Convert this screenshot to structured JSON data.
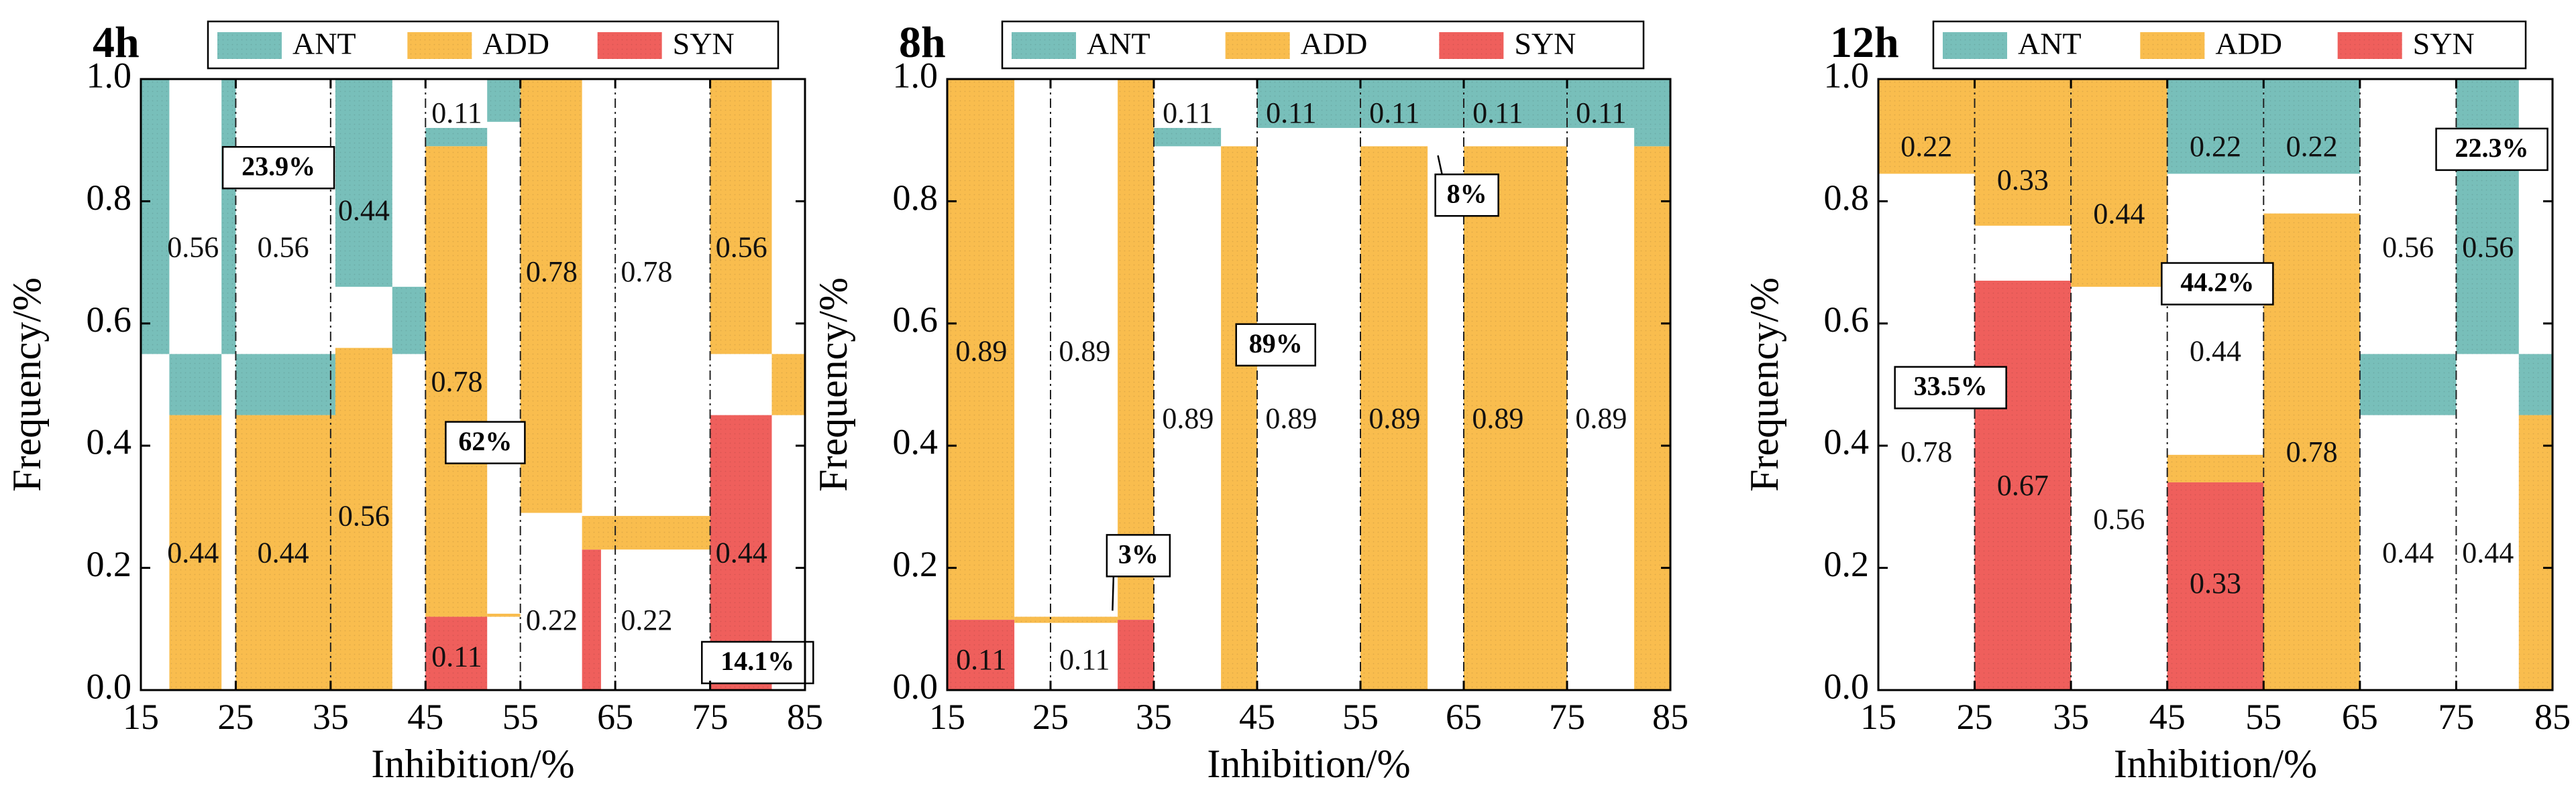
{
  "colors": {
    "ANT": "#78bfba",
    "ADD": "#f9bd4e",
    "SYN": "#ef5f5c"
  },
  "chart_data": [
    {
      "type": "bar",
      "variant": "variable-width stacked bars (mosaic)",
      "title": "4h",
      "xlabel": "Inhibition/%",
      "ylabel": "Frequency/%",
      "xlim": [
        15,
        85
      ],
      "ylim": [
        0,
        1.0
      ],
      "xticks": [
        "15",
        "25",
        "35",
        "45",
        "55",
        "65",
        "75",
        "85"
      ],
      "yticks": [
        "0.0",
        "0.2",
        "0.4",
        "0.6",
        "0.8",
        "1.0"
      ],
      "legend": [
        "ANT",
        "ADD",
        "SYN"
      ],
      "cells": [
        {
          "x0": 15,
          "x1": 18,
          "y0": 0.55,
          "y1": 1.0,
          "cat": "ANT"
        },
        {
          "x0": 18,
          "x1": 23.5,
          "y0": 0.45,
          "y1": 0.55,
          "cat": "ANT"
        },
        {
          "x0": 18,
          "x1": 23.5,
          "y0": 0.0,
          "y1": 0.45,
          "cat": "ADD"
        },
        {
          "x0": 23.5,
          "x1": 25,
          "y0": 0.55,
          "y1": 1.0,
          "cat": "ANT"
        },
        {
          "x0": 25,
          "x1": 35.5,
          "y0": 0.45,
          "y1": 0.55,
          "cat": "ANT"
        },
        {
          "x0": 25,
          "x1": 35.5,
          "y0": 0.0,
          "y1": 0.45,
          "cat": "ADD"
        },
        {
          "x0": 35.5,
          "x1": 41.5,
          "y0": 0.66,
          "y1": 1.0,
          "cat": "ANT"
        },
        {
          "x0": 35.5,
          "x1": 41.5,
          "y0": 0.0,
          "y1": 0.56,
          "cat": "ADD"
        },
        {
          "x0": 41.5,
          "x1": 45,
          "y0": 0.55,
          "y1": 0.66,
          "cat": "ANT"
        },
        {
          "x0": 45,
          "x1": 51.5,
          "y0": 0.89,
          "y1": 0.92,
          "cat": "ANT"
        },
        {
          "x0": 45,
          "x1": 51.5,
          "y0": 0.12,
          "y1": 0.89,
          "cat": "ADD"
        },
        {
          "x0": 45,
          "x1": 51.5,
          "y0": 0.0,
          "y1": 0.12,
          "cat": "SYN"
        },
        {
          "x0": 51.5,
          "x1": 55,
          "y0": 0.12,
          "y1": 0.125,
          "cat": "ADD"
        },
        {
          "x0": 51.5,
          "x1": 55,
          "y0": 0.93,
          "y1": 1.0,
          "cat": "ANT"
        },
        {
          "x0": 55,
          "x1": 61.5,
          "y0": 0.29,
          "y1": 1.0,
          "cat": "ADD"
        },
        {
          "x0": 61.5,
          "x1": 63.5,
          "y0": 0.0,
          "y1": 0.23,
          "cat": "SYN"
        },
        {
          "x0": 61.5,
          "x1": 75,
          "y0": 0.23,
          "y1": 0.285,
          "cat": "ADD"
        },
        {
          "x0": 75,
          "x1": 81.5,
          "y0": 0.55,
          "y1": 1.0,
          "cat": "ADD"
        },
        {
          "x0": 75,
          "x1": 81.5,
          "y0": 0.0,
          "y1": 0.45,
          "cat": "SYN"
        },
        {
          "x0": 81.5,
          "x1": 85,
          "y0": 0.45,
          "y1": 0.55,
          "cat": "ADD"
        }
      ],
      "labels": [
        {
          "x": 20.5,
          "y": 0.72,
          "text": "0.56"
        },
        {
          "x": 30,
          "y": 0.72,
          "text": "0.56"
        },
        {
          "x": 38.5,
          "y": 0.78,
          "text": "0.44"
        },
        {
          "x": 20.5,
          "y": 0.22,
          "text": "0.44"
        },
        {
          "x": 30,
          "y": 0.22,
          "text": "0.44"
        },
        {
          "x": 38.5,
          "y": 0.28,
          "text": "0.56"
        },
        {
          "x": 48.3,
          "y": 0.94,
          "text": "0.11"
        },
        {
          "x": 48.3,
          "y": 0.5,
          "text": "0.78"
        },
        {
          "x": 48.3,
          "y": 0.05,
          "text": "0.11"
        },
        {
          "x": 58.3,
          "y": 0.68,
          "text": "0.78"
        },
        {
          "x": 68.3,
          "y": 0.68,
          "text": "0.78"
        },
        {
          "x": 58.3,
          "y": 0.11,
          "text": "0.22"
        },
        {
          "x": 68.3,
          "y": 0.11,
          "text": "0.22"
        },
        {
          "x": 78.3,
          "y": 0.72,
          "text": "0.56"
        },
        {
          "x": 78.3,
          "y": 0.22,
          "text": "0.44"
        }
      ],
      "annotations": [
        {
          "x": 29.5,
          "y": 0.855,
          "text": "23.9%"
        },
        {
          "x": 51.3,
          "y": 0.405,
          "text": "62%"
        },
        {
          "x": 80,
          "y": 0.045,
          "text": "14.1%"
        }
      ]
    },
    {
      "type": "bar",
      "variant": "variable-width stacked bars (mosaic)",
      "title": "8h",
      "xlabel": "Inhibition/%",
      "ylabel": "Frequency/%",
      "xlim": [
        15,
        85
      ],
      "ylim": [
        0,
        1.0
      ],
      "xticks": [
        "15",
        "25",
        "35",
        "45",
        "55",
        "65",
        "75",
        "85"
      ],
      "yticks": [
        "0.0",
        "0.2",
        "0.4",
        "0.6",
        "0.8",
        "1.0"
      ],
      "legend": [
        "ANT",
        "ADD",
        "SYN"
      ],
      "cells": [
        {
          "x0": 15,
          "x1": 21.5,
          "y0": 0.115,
          "y1": 1.0,
          "cat": "ADD"
        },
        {
          "x0": 15,
          "x1": 21.5,
          "y0": 0.0,
          "y1": 0.115,
          "cat": "SYN"
        },
        {
          "x0": 21.5,
          "x1": 31.5,
          "y0": 0.11,
          "y1": 0.12,
          "cat": "ADD"
        },
        {
          "x0": 31.5,
          "x1": 35,
          "y0": 0.115,
          "y1": 1.0,
          "cat": "ADD"
        },
        {
          "x0": 31.5,
          "x1": 35,
          "y0": 0.0,
          "y1": 0.115,
          "cat": "SYN"
        },
        {
          "x0": 35,
          "x1": 41.5,
          "y0": 0.89,
          "y1": 0.92,
          "cat": "ANT"
        },
        {
          "x0": 41.5,
          "x1": 45,
          "y0": 0.0,
          "y1": 0.89,
          "cat": "ADD"
        },
        {
          "x0": 45,
          "x1": 85,
          "y0": 0.92,
          "y1": 1.0,
          "cat": "ANT"
        },
        {
          "x0": 55,
          "x1": 61.5,
          "y0": 0.0,
          "y1": 0.89,
          "cat": "ADD"
        },
        {
          "x0": 65,
          "x1": 75,
          "y0": 0.0,
          "y1": 0.89,
          "cat": "ADD"
        },
        {
          "x0": 81.5,
          "x1": 85,
          "y0": 0.0,
          "y1": 0.89,
          "cat": "ADD"
        },
        {
          "x0": 81.5,
          "x1": 85,
          "y0": 0.89,
          "y1": 0.92,
          "cat": "ANT"
        }
      ],
      "labels": [
        {
          "x": 18.3,
          "y": 0.55,
          "text": "0.89"
        },
        {
          "x": 28.3,
          "y": 0.55,
          "text": "0.89"
        },
        {
          "x": 18.3,
          "y": 0.045,
          "text": "0.11"
        },
        {
          "x": 28.3,
          "y": 0.045,
          "text": "0.11"
        },
        {
          "x": 38.3,
          "y": 0.94,
          "text": "0.11"
        },
        {
          "x": 48.3,
          "y": 0.94,
          "text": "0.11"
        },
        {
          "x": 58.3,
          "y": 0.94,
          "text": "0.11"
        },
        {
          "x": 68.3,
          "y": 0.94,
          "text": "0.11"
        },
        {
          "x": 78.3,
          "y": 0.94,
          "text": "0.11"
        },
        {
          "x": 38.3,
          "y": 0.44,
          "text": "0.89"
        },
        {
          "x": 48.3,
          "y": 0.44,
          "text": "0.89"
        },
        {
          "x": 58.3,
          "y": 0.44,
          "text": "0.89"
        },
        {
          "x": 68.3,
          "y": 0.44,
          "text": "0.89"
        },
        {
          "x": 78.3,
          "y": 0.44,
          "text": "0.89"
        }
      ],
      "annotations": [
        {
          "x": 33.5,
          "y": 0.22,
          "text": "3%",
          "arrow_to": [
            31,
            0.13
          ]
        },
        {
          "x": 46.8,
          "y": 0.565,
          "text": "89%"
        },
        {
          "x": 65.3,
          "y": 0.81,
          "text": "8%",
          "arrow_to": [
            62.5,
            0.875
          ]
        }
      ]
    },
    {
      "type": "bar",
      "variant": "variable-width stacked bars (mosaic)",
      "title": "12h",
      "xlabel": "Inhibition/%",
      "ylabel": "Frequency/%",
      "xlim": [
        15,
        85
      ],
      "ylim": [
        0,
        1.0
      ],
      "xticks": [
        "15",
        "25",
        "35",
        "45",
        "55",
        "65",
        "75",
        "85"
      ],
      "yticks": [
        "0.0",
        "0.2",
        "0.4",
        "0.6",
        "0.8",
        "1.0"
      ],
      "legend": [
        "ANT",
        "ADD",
        "SYN"
      ],
      "cells": [
        {
          "x0": 15,
          "x1": 25,
          "y0": 0.845,
          "y1": 1.0,
          "cat": "ADD"
        },
        {
          "x0": 25,
          "x1": 35,
          "y0": 0.76,
          "y1": 1.0,
          "cat": "ADD"
        },
        {
          "x0": 25,
          "x1": 35,
          "y0": 0.0,
          "y1": 0.67,
          "cat": "SYN"
        },
        {
          "x0": 35,
          "x1": 45,
          "y0": 0.66,
          "y1": 1.0,
          "cat": "ADD"
        },
        {
          "x0": 45,
          "x1": 55,
          "y0": 0.845,
          "y1": 1.0,
          "cat": "ANT"
        },
        {
          "x0": 45,
          "x1": 55,
          "y0": 0.34,
          "y1": 0.385,
          "cat": "ADD"
        },
        {
          "x0": 45,
          "x1": 55,
          "y0": 0.0,
          "y1": 0.34,
          "cat": "SYN"
        },
        {
          "x0": 55,
          "x1": 65,
          "y0": 0.845,
          "y1": 1.0,
          "cat": "ANT"
        },
        {
          "x0": 55,
          "x1": 65,
          "y0": 0.0,
          "y1": 0.78,
          "cat": "ADD"
        },
        {
          "x0": 65,
          "x1": 75,
          "y0": 0.45,
          "y1": 0.55,
          "cat": "ANT"
        },
        {
          "x0": 75,
          "x1": 81.5,
          "y0": 0.55,
          "y1": 1.0,
          "cat": "ANT"
        },
        {
          "x0": 81.5,
          "x1": 85,
          "y0": 0.45,
          "y1": 0.55,
          "cat": "ANT"
        },
        {
          "x0": 81.5,
          "x1": 85,
          "y0": 0.0,
          "y1": 0.45,
          "cat": "ADD"
        }
      ],
      "labels": [
        {
          "x": 20,
          "y": 0.885,
          "text": "0.22"
        },
        {
          "x": 30,
          "y": 0.83,
          "text": "0.33"
        },
        {
          "x": 40,
          "y": 0.775,
          "text": "0.44"
        },
        {
          "x": 50,
          "y": 0.885,
          "text": "0.22"
        },
        {
          "x": 60,
          "y": 0.885,
          "text": "0.22"
        },
        {
          "x": 70,
          "y": 0.72,
          "text": "0.56"
        },
        {
          "x": 78.3,
          "y": 0.72,
          "text": "0.56"
        },
        {
          "x": 20,
          "y": 0.385,
          "text": "0.78"
        },
        {
          "x": 30,
          "y": 0.33,
          "text": "0.67"
        },
        {
          "x": 40,
          "y": 0.275,
          "text": "0.56"
        },
        {
          "x": 50,
          "y": 0.55,
          "text": "0.44"
        },
        {
          "x": 50,
          "y": 0.17,
          "text": "0.33"
        },
        {
          "x": 60,
          "y": 0.385,
          "text": "0.78"
        },
        {
          "x": 70,
          "y": 0.22,
          "text": "0.44"
        },
        {
          "x": 78.3,
          "y": 0.22,
          "text": "0.44"
        }
      ],
      "annotations": [
        {
          "x": 78.7,
          "y": 0.885,
          "text": "22.3%"
        },
        {
          "x": 50.2,
          "y": 0.665,
          "text": "44.2%"
        },
        {
          "x": 22.5,
          "y": 0.495,
          "text": "33.5%"
        }
      ]
    }
  ]
}
